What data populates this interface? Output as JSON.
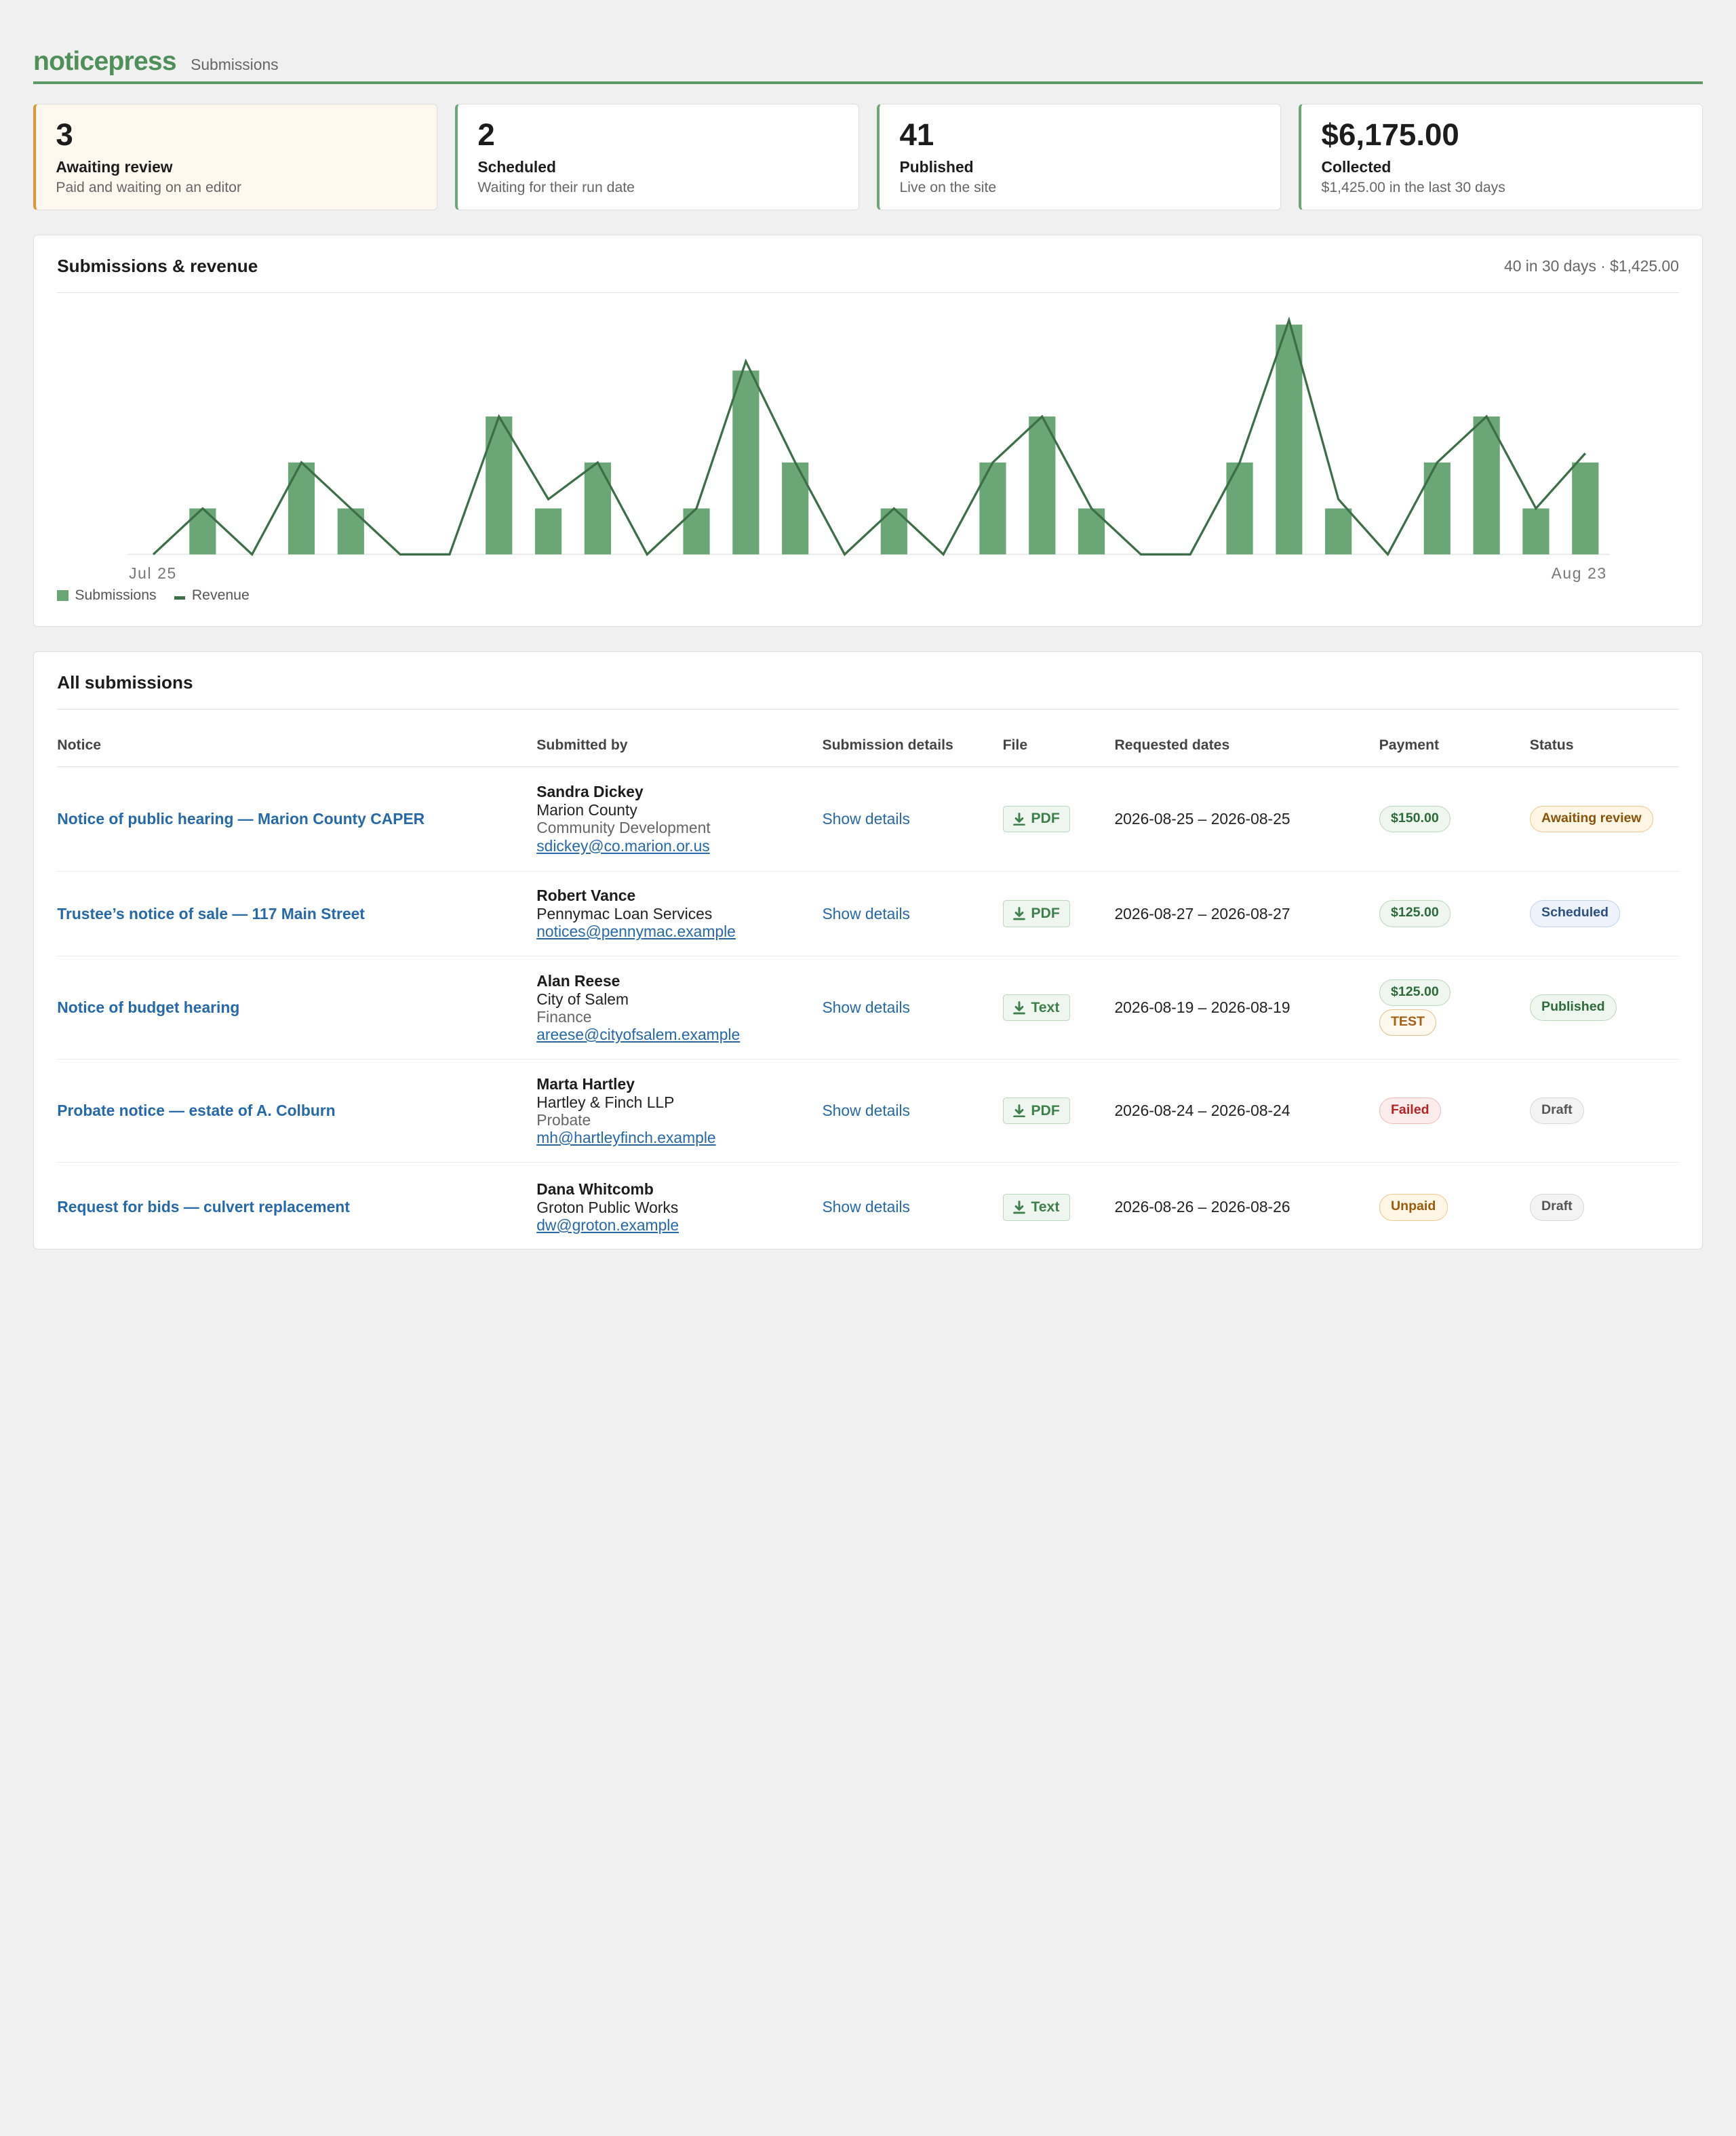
{
  "app": {
    "logo": "noticepress",
    "section": "Submissions"
  },
  "cards": [
    {
      "value": "3",
      "label": "Awaiting review",
      "desc": "Paid and waiting on an editor",
      "accent": "#e29339"
    },
    {
      "value": "2",
      "label": "Scheduled",
      "desc": "Waiting for their run date",
      "accent": "#6aa676"
    },
    {
      "value": "41",
      "label": "Published",
      "desc": "Live on the site",
      "accent": "#6aa676"
    },
    {
      "value": "$6,175.00",
      "label": "Collected",
      "desc": "$1,425.00 in the last 30 days",
      "accent": "#6aa676"
    }
  ],
  "chart_panel": {
    "title": "Submissions & revenue",
    "meta": "40 in 30 days · $1,425.00"
  },
  "chart_data": {
    "type": "bar",
    "x_start_label": "Jul 25",
    "x_end_label": "Aug 23",
    "series": [
      {
        "name": "Submissions",
        "type": "bar",
        "color": "#6aa676",
        "values": [
          0,
          1,
          0,
          2,
          1,
          0,
          0,
          3,
          1,
          2,
          0,
          1,
          4,
          2,
          0,
          1,
          0,
          2,
          3,
          1,
          0,
          0,
          2,
          5,
          1,
          0,
          2,
          3,
          1,
          2
        ]
      },
      {
        "name": "Revenue",
        "type": "line",
        "color": "#3d6e48",
        "values": [
          0,
          1,
          0,
          2,
          1,
          0,
          0,
          3,
          1.2,
          2,
          0,
          1,
          4.2,
          2,
          0,
          1,
          0,
          2,
          3,
          1,
          0,
          0,
          2,
          5.1,
          1.2,
          0,
          2,
          3,
          1,
          2.2
        ]
      }
    ],
    "legend": "bottom-left",
    "grid": false
  },
  "table": {
    "title": "All submissions",
    "columns": [
      "Notice",
      "Submitted by",
      "Submission details",
      "File",
      "Requested dates",
      "Payment",
      "Status"
    ],
    "rows": [
      {
        "notice": "Notice of public hearing — Marion County CAPER",
        "name": "Sandra Dickey",
        "org": "Marion County",
        "dept": "Community Development",
        "email": "sdickey@co.marion.or.us",
        "details": "Show details",
        "file": "PDF",
        "dates": "2026-08-25 – 2026-08-25",
        "payment": "$150.00",
        "payment_kind": "paid",
        "test": "",
        "status": "Awaiting review",
        "status_kind": "awaiting"
      },
      {
        "notice": "Trustee’s notice of sale — 117 Main Street",
        "name": "Robert Vance",
        "org": "Pennymac Loan Services",
        "dept": "",
        "email": "notices@pennymac.example",
        "details": "Show details",
        "file": "PDF",
        "dates": "2026-08-27 – 2026-08-27",
        "payment": "$125.00",
        "payment_kind": "paid",
        "test": "",
        "status": "Scheduled",
        "status_kind": "scheduled"
      },
      {
        "notice": "Notice of budget hearing",
        "name": "Alan Reese",
        "org": "City of Salem",
        "dept": "Finance",
        "email": "areese@cityofsalem.example",
        "details": "Show details",
        "file": "Text",
        "dates": "2026-08-19 – 2026-08-19",
        "payment": "$125.00",
        "payment_kind": "paid",
        "test": "TEST",
        "status": "Published",
        "status_kind": "published"
      },
      {
        "notice": "Probate notice — estate of A. Colburn",
        "name": "Marta Hartley",
        "org": "Hartley & Finch LLP",
        "dept": "Probate",
        "email": "mh@hartleyfinch.example",
        "details": "Show details",
        "file": "PDF",
        "dates": "2026-08-24 – 2026-08-24",
        "payment": "Failed",
        "payment_kind": "failed",
        "test": "",
        "status": "Draft",
        "status_kind": "draft"
      },
      {
        "notice": "Request for bids — culvert replacement",
        "name": "Dana Whitcomb",
        "org": "Groton Public Works",
        "dept": "",
        "email": "dw@groton.example",
        "details": "Show details",
        "file": "Text",
        "dates": "2026-08-26 – 2026-08-26",
        "payment": "Unpaid",
        "payment_kind": "unpaid",
        "test": "",
        "status": "Draft",
        "status_kind": "draft"
      }
    ]
  }
}
